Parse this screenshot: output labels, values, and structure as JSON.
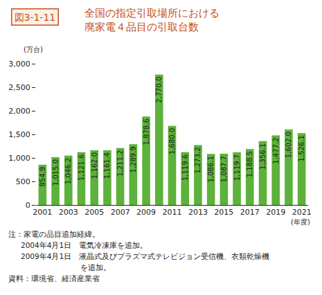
{
  "chart_data": {
    "type": "bar",
    "figure_label": "図3-1-11",
    "title": "全国の指定引取場所における\n廃家電４品目の引取台数",
    "y_label": "(万台)",
    "x_label": "(年度)",
    "categories": [
      "2001",
      null,
      "2003",
      null,
      "2005",
      null,
      "2007",
      null,
      "2009",
      null,
      "2011",
      null,
      "2013",
      null,
      "2015",
      null,
      "2017",
      null,
      "2019",
      null,
      "2021"
    ],
    "values": [
      854.9,
      1015.0,
      1046.2,
      1121.6,
      1162.0,
      1161.4,
      1211.2,
      1289.9,
      1878.6,
      2770.0,
      1680.0,
      1119.6,
      1273.2,
      1086.1,
      1087.7,
      1119.7,
      1188.5,
      1356.1,
      1477.2,
      1602.0,
      1526.1
    ],
    "value_labels": [
      "854.9",
      "1,015.0",
      "1,046.2",
      "1,121.6",
      "1,162.0",
      "1,161.4",
      "1,211.2",
      "1,289.9",
      "1,878.6",
      "2,770.0",
      "1,680.0",
      "1,119.6",
      "1,273.2",
      "1,086.1",
      "1,087.7",
      "1,119.7",
      "1,188.5",
      "1,356.1",
      "1,477.2",
      "1,602.0",
      "1,526.1"
    ],
    "color": "#5cb23a",
    "ylim": [
      0,
      3000
    ],
    "yticks": [
      0,
      500,
      {
        "value": 1000,
        "label": "1,000"
      },
      {
        "value": 1500,
        "label": "1,500"
      },
      {
        "value": 2000,
        "label": "2,000"
      },
      {
        "value": 2500,
        "label": "2,500"
      },
      {
        "value": 3000,
        "label": "3,000"
      }
    ],
    "grid": false,
    "data_labels": true,
    "notes": [
      "注：家電の品目追加経緯。",
      "2004年4月1日　電気冷凍庫を追加。",
      "2009年4月1日　液晶式及びプラズマ式テレビジョン受信機、衣類乾燥機\nを追加。"
    ],
    "source": "資料：環境省、経済産業省"
  }
}
